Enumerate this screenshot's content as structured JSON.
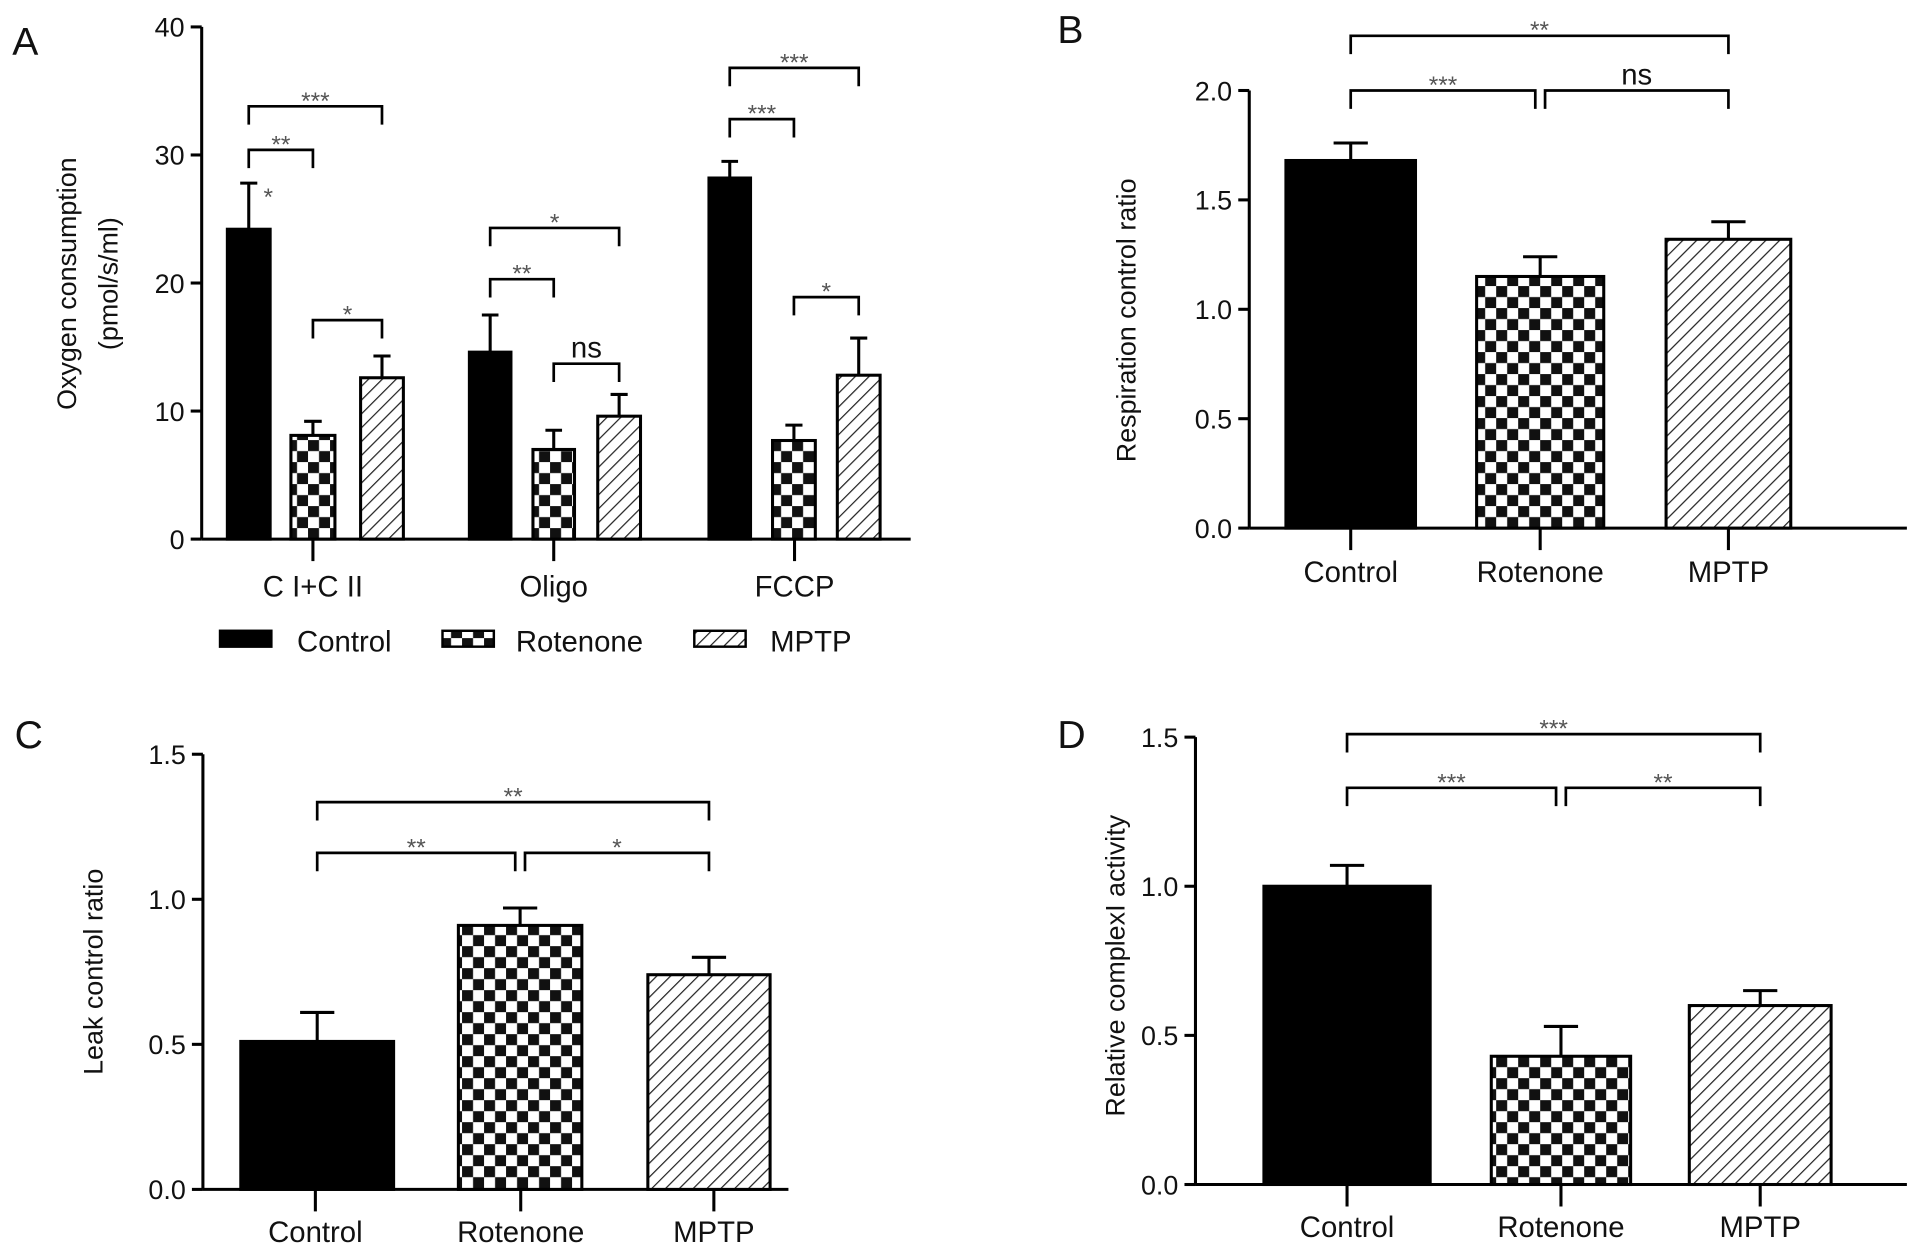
{
  "chart_data": [
    {
      "panel": "A",
      "type": "bar",
      "ylabel": [
        "Oxygen consumption",
        "(pmol/s/ml)"
      ],
      "ylim": [
        0,
        40
      ],
      "yticks": [
        0,
        10,
        20,
        30,
        40
      ],
      "categories": [
        "C I+C II",
        "Oligo",
        "FCCP"
      ],
      "series": [
        {
          "name": "Control",
          "pattern": "solid",
          "values": [
            24.2,
            14.6,
            28.2
          ],
          "err_upper": [
            27.8,
            17.5,
            29.5
          ]
        },
        {
          "name": "Rotenone",
          "pattern": "checker",
          "values": [
            8.1,
            7.0,
            7.7
          ],
          "err_upper": [
            9.2,
            8.5,
            8.9
          ]
        },
        {
          "name": "MPTP",
          "pattern": "hatch",
          "values": [
            12.6,
            9.6,
            12.8
          ],
          "err_upper": [
            14.3,
            11.3,
            15.7
          ]
        }
      ],
      "legend": {
        "position": "bottom",
        "entries": [
          "Control",
          "Rotenone",
          "MPTP"
        ]
      },
      "annotations": [
        {
          "from": 0,
          "to": 2,
          "y": 33.8,
          "label": "***"
        },
        {
          "from": 0,
          "to": 1,
          "y": 30.4,
          "label": "**"
        },
        {
          "bar": 0,
          "y": 27.8,
          "label": "*"
        },
        {
          "from": 1,
          "to": 2,
          "y": 17.1,
          "label": "*"
        },
        {
          "from": 3,
          "to": 5,
          "y": 24.3,
          "label": "*"
        },
        {
          "from": 3,
          "to": 4,
          "y": 20.3,
          "label": "**"
        },
        {
          "from": 4,
          "to": 5,
          "y": 13.7,
          "label": "ns"
        },
        {
          "from": 6,
          "to": 8,
          "y": 36.8,
          "label": "***"
        },
        {
          "from": 6,
          "to": 7,
          "y": 32.8,
          "label": "***"
        },
        {
          "from": 7,
          "to": 8,
          "y": 18.9,
          "label": "*"
        }
      ]
    },
    {
      "panel": "B",
      "type": "bar",
      "ylabel": [
        "Respiration control ratio"
      ],
      "ylim": [
        0,
        2.0
      ],
      "yticks": [
        "0.0",
        "0.5",
        "1.0",
        "1.5",
        "2.0"
      ],
      "categories": [
        "Control",
        "Rotenone",
        "MPTP"
      ],
      "patterns": [
        "solid",
        "checker",
        "hatch"
      ],
      "values": [
        1.68,
        1.15,
        1.32
      ],
      "err_upper": [
        1.76,
        1.24,
        1.4
      ],
      "annotations": [
        {
          "from": 0,
          "to": 2,
          "y": 2.25,
          "label": "**"
        },
        {
          "from": 0,
          "to": 1,
          "y": 2.0,
          "label": "***"
        },
        {
          "from": 1,
          "to": 2,
          "y": 2.0,
          "label": "ns"
        }
      ]
    },
    {
      "panel": "C",
      "type": "bar",
      "ylabel": [
        "Leak control ratio"
      ],
      "ylim": [
        0,
        1.5
      ],
      "yticks": [
        "0.0",
        "0.5",
        "1.0",
        "1.5"
      ],
      "categories": [
        "Control",
        "Rotenone",
        "MPTP"
      ],
      "patterns": [
        "solid",
        "checker",
        "hatch"
      ],
      "values": [
        0.51,
        0.91,
        0.74
      ],
      "err_upper": [
        0.61,
        0.97,
        0.8
      ],
      "annotations": [
        {
          "from": 0,
          "to": 2,
          "y": 1.335,
          "label": "**"
        },
        {
          "from": 0,
          "to": 1,
          "y": 1.16,
          "label": "**"
        },
        {
          "from": 1,
          "to": 2,
          "y": 1.16,
          "label": "*"
        }
      ]
    },
    {
      "panel": "D",
      "type": "bar",
      "ylabel": [
        "Relative complexI activity"
      ],
      "ylim": [
        0,
        1.5
      ],
      "yticks": [
        "0.0",
        "0.5",
        "1.0",
        "1.5"
      ],
      "categories": [
        "Control",
        "Rotenone",
        "MPTP"
      ],
      "patterns": [
        "solid",
        "checker",
        "hatch"
      ],
      "values": [
        1.0,
        0.43,
        0.6
      ],
      "err_upper": [
        1.07,
        0.53,
        0.65
      ],
      "annotations": [
        {
          "from": 0,
          "to": 2,
          "y": 1.51,
          "label": "***"
        },
        {
          "from": 0,
          "to": 1,
          "y": 1.33,
          "label": "***"
        },
        {
          "from": 1,
          "to": 2,
          "y": 1.33,
          "label": "**"
        }
      ]
    }
  ]
}
